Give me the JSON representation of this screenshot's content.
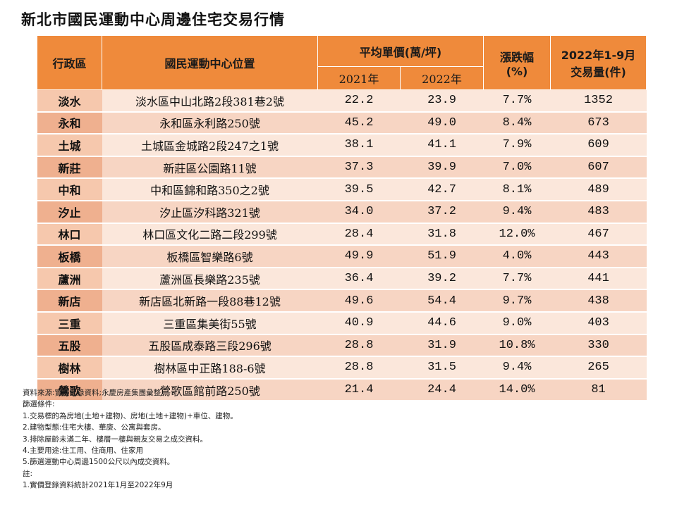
{
  "title": "新北市國民運動中心周邊住宅交易行情",
  "header": {
    "district": "行政區",
    "location": "國民運動中心位置",
    "avg_price": "平均單價(萬/坪)",
    "year1": "2021年",
    "year2": "2022年",
    "change": "漲跌幅",
    "change_unit": "(%)",
    "volume_line1": "2022年1-9月",
    "volume_line2": "交易量(件)"
  },
  "rows": [
    {
      "district": "淡水",
      "location": "淡水區中山北路2段381巷2號",
      "p2021": "22.2",
      "p2022": "23.9",
      "change": "7.7%",
      "volume": "1352"
    },
    {
      "district": "永和",
      "location": "永和區永利路250號",
      "p2021": "45.2",
      "p2022": "49.0",
      "change": "8.4%",
      "volume": "673"
    },
    {
      "district": "土城",
      "location": "土城區金城路2段247之1號",
      "p2021": "38.1",
      "p2022": "41.1",
      "change": "7.9%",
      "volume": "609"
    },
    {
      "district": "新莊",
      "location": "新莊區公園路11號",
      "p2021": "37.3",
      "p2022": "39.9",
      "change": "7.0%",
      "volume": "607"
    },
    {
      "district": "中和",
      "location": "中和區錦和路350之2號",
      "p2021": "39.5",
      "p2022": "42.7",
      "change": "8.1%",
      "volume": "489"
    },
    {
      "district": "汐止",
      "location": "汐止區汐科路321號",
      "p2021": "34.0",
      "p2022": "37.2",
      "change": "9.4%",
      "volume": "483"
    },
    {
      "district": "林口",
      "location": "林口區文化二路二段299號",
      "p2021": "28.4",
      "p2022": "31.8",
      "change": "12.0%",
      "volume": "467"
    },
    {
      "district": "板橋",
      "location": "板橋區智樂路6號",
      "p2021": "49.9",
      "p2022": "51.9",
      "change": "4.0%",
      "volume": "443"
    },
    {
      "district": "蘆洲",
      "location": "蘆洲區長樂路235號",
      "p2021": "36.4",
      "p2022": "39.2",
      "change": "7.7%",
      "volume": "441"
    },
    {
      "district": "新店",
      "location": "新店區北新路一段88巷12號",
      "p2021": "49.6",
      "p2022": "54.4",
      "change": "9.7%",
      "volume": "438"
    },
    {
      "district": "三重",
      "location": "三重區集美街55號",
      "p2021": "40.9",
      "p2022": "44.6",
      "change": "9.0%",
      "volume": "403"
    },
    {
      "district": "五股",
      "location": "五股區成泰路三段296號",
      "p2021": "28.8",
      "p2022": "31.9",
      "change": "10.8%",
      "volume": "330"
    },
    {
      "district": "樹林",
      "location": "樹林區中正路188-6號",
      "p2021": "28.8",
      "p2022": "31.5",
      "change": "9.4%",
      "volume": "265"
    },
    {
      "district": "鶯歌",
      "location": "鶯歌區館前路250號",
      "p2021": "21.4",
      "p2022": "24.4",
      "change": "14.0%",
      "volume": "81"
    }
  ],
  "notes": [
    "資料來源:實價登錄資料;永慶房產集團彙整。",
    "篩選條件:",
    "1.交易標的為房地(土地+建物)、房地(土地+建物)+車位、建物。",
    "2.建物型態:住宅大樓、華廈、公寓與套房。",
    "3.排除屋齡未滿二年、樓層一樓與親友交易之成交資料。",
    "4.主要用途:住工用、住商用、住家用",
    "5.篩選運動中心周邊1500公尺以內成交資料。",
    "註:",
    "1.實價登錄資料統計2021年1月至2022年9月"
  ]
}
